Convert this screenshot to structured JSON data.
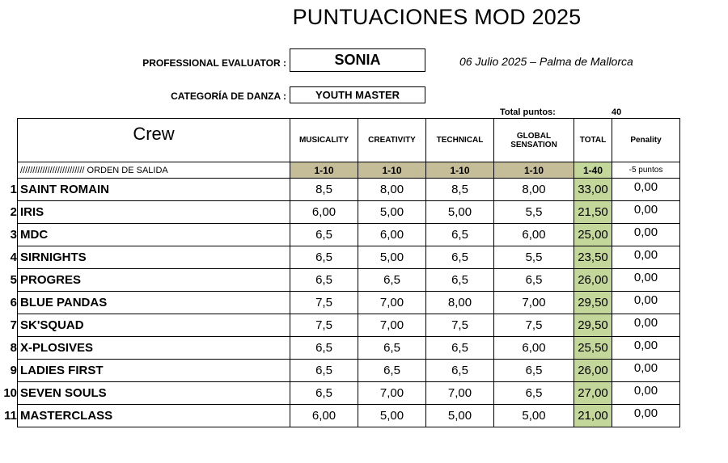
{
  "title": "PUNTUACIONES MOD 2025",
  "evaluator": {
    "label": "PROFESSIONAL EVALUATOR :",
    "value": "SONIA"
  },
  "date_location": "06 Julio 2025 – Palma de Mallorca",
  "category": {
    "label": "CATEGORÍA DE DANZA :",
    "value": "YOUTH MASTER"
  },
  "total_points": {
    "label": "Total puntos:",
    "value": "40"
  },
  "headers": {
    "crew": "Crew",
    "musicality": "MUSICALITY",
    "creativity": "CREATIVITY",
    "technical": "TECHNICAL",
    "global": "GLOBAL SENSATION",
    "total": "TOTAL",
    "penality": "Penality"
  },
  "ranges": {
    "order": "//////////////////////////  ORDEN DE SALIDA",
    "musicality": "1-10",
    "creativity": "1-10",
    "technical": "1-10",
    "global": "1-10",
    "total": "1-40",
    "penality": "-5 puntos"
  },
  "rows": [
    {
      "n": "1",
      "crew": "SAINT ROMAIN",
      "musicality": "8,5",
      "creativity": "8,00",
      "technical": "8,5",
      "global": "8,00",
      "total": "33,00",
      "penality": "0,00"
    },
    {
      "n": "2",
      "crew": "IRIS",
      "musicality": "6,00",
      "creativity": "5,00",
      "technical": "5,00",
      "global": "5,5",
      "total": "21,50",
      "penality": "0,00"
    },
    {
      "n": "3",
      "crew": "MDC",
      "musicality": "6,5",
      "creativity": "6,00",
      "technical": "6,5",
      "global": "6,00",
      "total": "25,00",
      "penality": "0,00"
    },
    {
      "n": "4",
      "crew": "SIRNIGHTS",
      "musicality": "6,5",
      "creativity": "5,00",
      "technical": "6,5",
      "global": "5,5",
      "total": "23,50",
      "penality": "0,00"
    },
    {
      "n": "5",
      "crew": "PROGRES",
      "musicality": "6,5",
      "creativity": "6,5",
      "technical": "6,5",
      "global": "6,5",
      "total": "26,00",
      "penality": "0,00"
    },
    {
      "n": "6",
      "crew": "BLUE PANDAS",
      "musicality": "7,5",
      "creativity": "7,00",
      "technical": "8,00",
      "global": "7,00",
      "total": "29,50",
      "penality": "0,00"
    },
    {
      "n": "7",
      "crew": "SK'SQUAD",
      "musicality": "7,5",
      "creativity": "7,00",
      "technical": "7,5",
      "global": "7,5",
      "total": "29,50",
      "penality": "0,00"
    },
    {
      "n": "8",
      "crew": "X-PLOSIVES",
      "musicality": "6,5",
      "creativity": "6,5",
      "technical": "6,5",
      "global": "6,00",
      "total": "25,50",
      "penality": "0,00"
    },
    {
      "n": "9",
      "crew": "LADIES FIRST",
      "musicality": "6,5",
      "creativity": "6,5",
      "technical": "6,5",
      "global": "6,5",
      "total": "26,00",
      "penality": "0,00"
    },
    {
      "n": "10",
      "crew": "SEVEN SOULS",
      "musicality": "6,5",
      "creativity": "7,00",
      "technical": "7,00",
      "global": "6,5",
      "total": "27,00",
      "penality": "0,00"
    },
    {
      "n": "11",
      "crew": "MASTERCLASS",
      "musicality": "6,00",
      "creativity": "5,00",
      "technical": "5,00",
      "global": "5,00",
      "total": "21,00",
      "penality": "0,00"
    }
  ],
  "colors": {
    "range_fill": "#c4bd97",
    "total_fill": "#c4d79b"
  }
}
